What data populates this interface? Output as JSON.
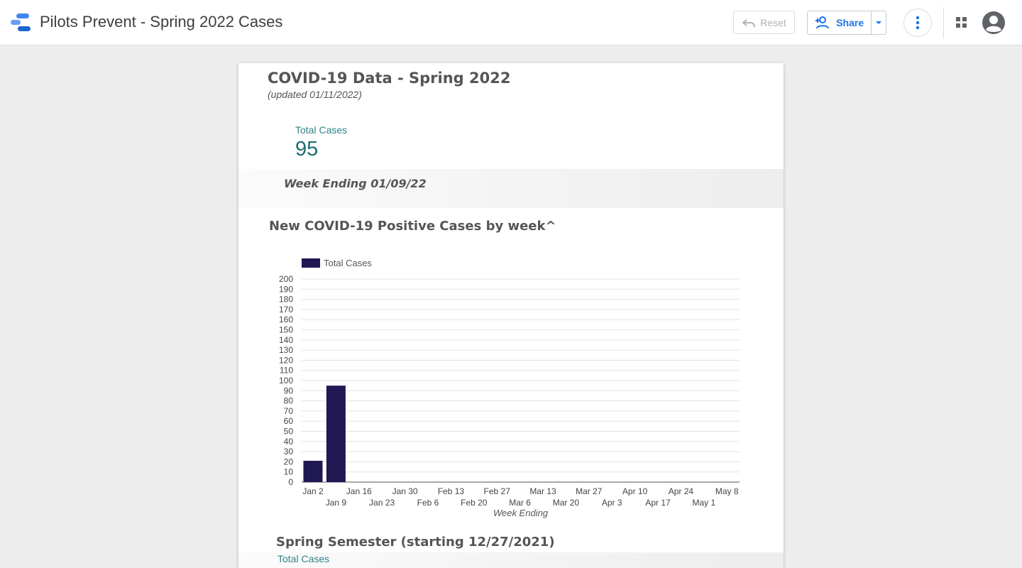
{
  "app": {
    "title": "Pilots Prevent - Spring 2022 Cases",
    "reset_label": "Reset",
    "share_label": "Share",
    "accent_color": "#1a73e8"
  },
  "icons": {
    "logo": "data-studio-logo-icon",
    "reset": "undo-icon",
    "share": "person-add-icon",
    "share_dropdown": "caret-down-icon",
    "more": "more-vert-icon",
    "apps": "apps-grid-icon",
    "account": "account-circle-icon"
  },
  "report": {
    "title": "COVID-19 Data - Spring 2022",
    "subtitle": "(updated 01/11/2022)",
    "scorecard": {
      "label": "Total Cases",
      "value": "95"
    },
    "week_ending": "Week Ending 01/09/22",
    "chart_title": "New COVID-19 Positive Cases by week^",
    "spring": {
      "title": "Spring Semester (starting 12/27/2021)",
      "label": "Total Cases"
    }
  },
  "chart_data": {
    "type": "bar",
    "legend_position": "top-left",
    "xlabel": "Week Ending",
    "ylabel": "",
    "ylim": [
      0,
      200
    ],
    "ytick_step": 10,
    "grid": true,
    "categories": [
      "Jan 2",
      "Jan 9",
      "Jan 16",
      "Jan 23",
      "Jan 30",
      "Feb 6",
      "Feb 13",
      "Feb 20",
      "Feb 27",
      "Mar 6",
      "Mar 13",
      "Mar 20",
      "Mar 27",
      "Apr 3",
      "Apr 10",
      "Apr 17",
      "Apr 24",
      "May 1",
      "May 8"
    ],
    "series": [
      {
        "name": "Total Cases",
        "color": "#1f1853",
        "values": [
          21,
          95,
          0,
          0,
          0,
          0,
          0,
          0,
          0,
          0,
          0,
          0,
          0,
          0,
          0,
          0,
          0,
          0,
          0
        ]
      }
    ]
  }
}
